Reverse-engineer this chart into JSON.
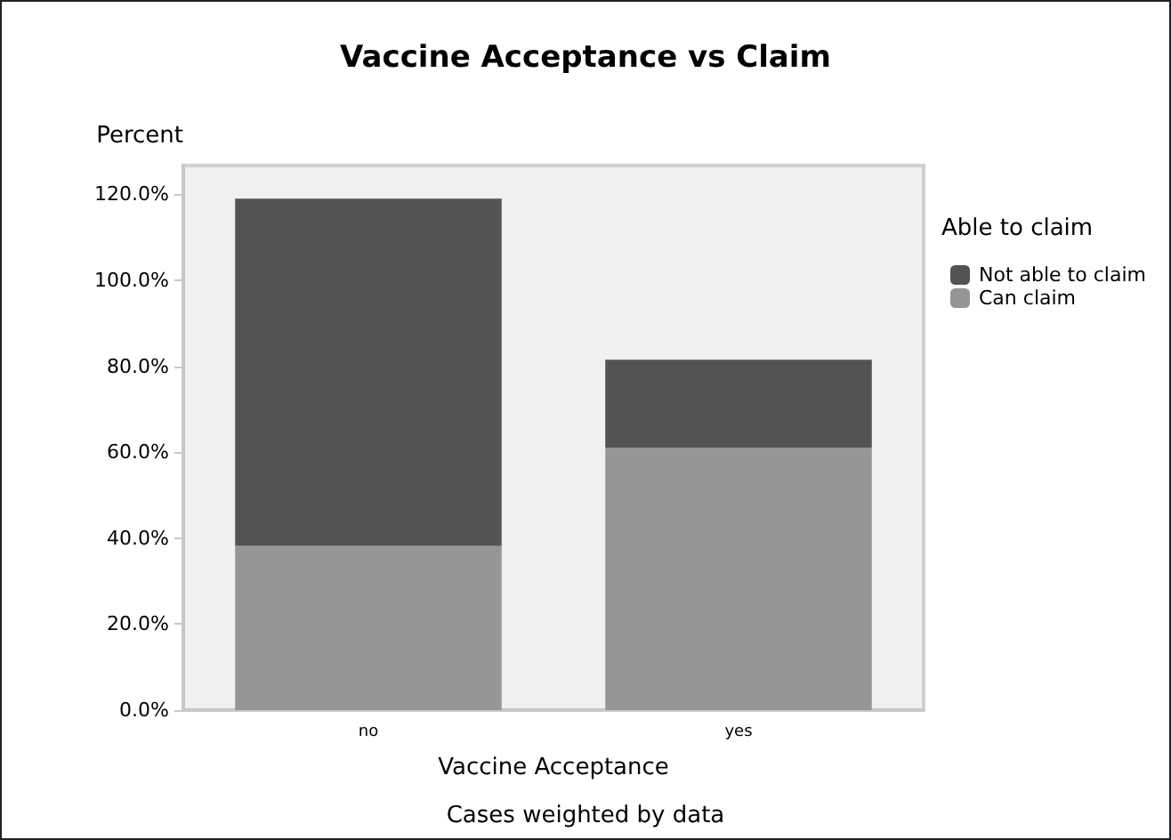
{
  "chart_data": {
    "type": "bar",
    "title": "Vaccine Acceptance vs Claim",
    "xlabel": "Vaccine Acceptance",
    "ylabel": "Percent",
    "legend_title": "Able to claim",
    "annotations": [
      "Cases weighted by data"
    ],
    "categories": [
      "no",
      "yes"
    ],
    "stacked": true,
    "series": [
      {
        "name": "Can claim",
        "color": "#969696",
        "values": [
          38.2,
          61.0
        ]
      },
      {
        "name": "Not able to claim",
        "color": "#535353",
        "values": [
          80.8,
          20.5
        ]
      }
    ],
    "ylim": [
      0,
      126.7
    ],
    "yticks": [
      {
        "value": 0,
        "label": "0.0%"
      },
      {
        "value": 20,
        "label": "20.0%"
      },
      {
        "value": 40,
        "label": "40.0%"
      },
      {
        "value": 60,
        "label": "60.0%"
      },
      {
        "value": 80,
        "label": "80.0%"
      },
      {
        "value": 100,
        "label": "100.0%"
      },
      {
        "value": 120,
        "label": "120.0%"
      }
    ],
    "grid": false,
    "legend": "top right"
  }
}
